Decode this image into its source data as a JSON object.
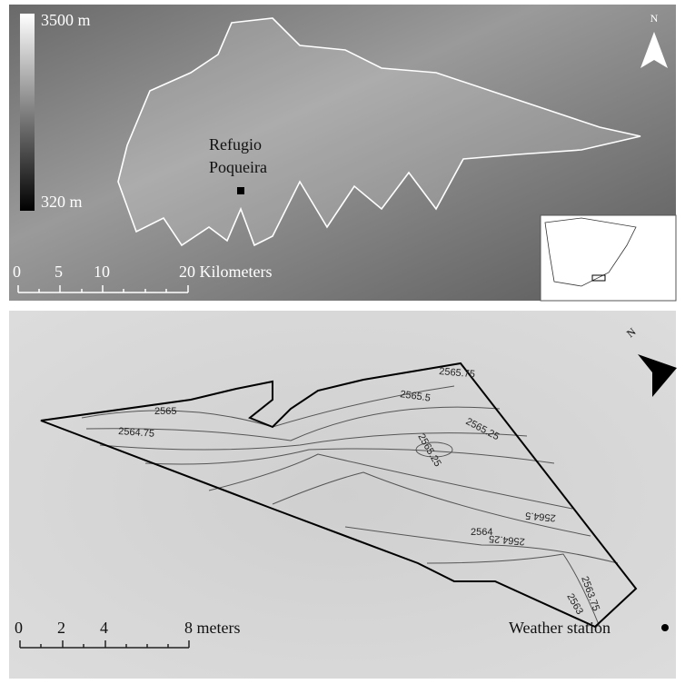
{
  "top_panel": {
    "legend": {
      "max": "3500 m",
      "min": "320 m"
    },
    "station_label": [
      "Refugio",
      "Poqueira"
    ],
    "north": "N",
    "scale": {
      "ticks": [
        "0",
        "5",
        "10"
      ],
      "end": "20 Kilometers"
    }
  },
  "bottom_panel": {
    "north": "N",
    "contours": [
      "2565.75",
      "2565.5",
      "2565.25",
      "2565",
      "2564.75",
      "2565.25",
      "2564.5",
      "2564.25",
      "2564",
      "2563.75",
      "2563"
    ],
    "scale": {
      "ticks": [
        "0",
        "2",
        "4"
      ],
      "end": "8 meters"
    },
    "legend": "Weather station"
  }
}
